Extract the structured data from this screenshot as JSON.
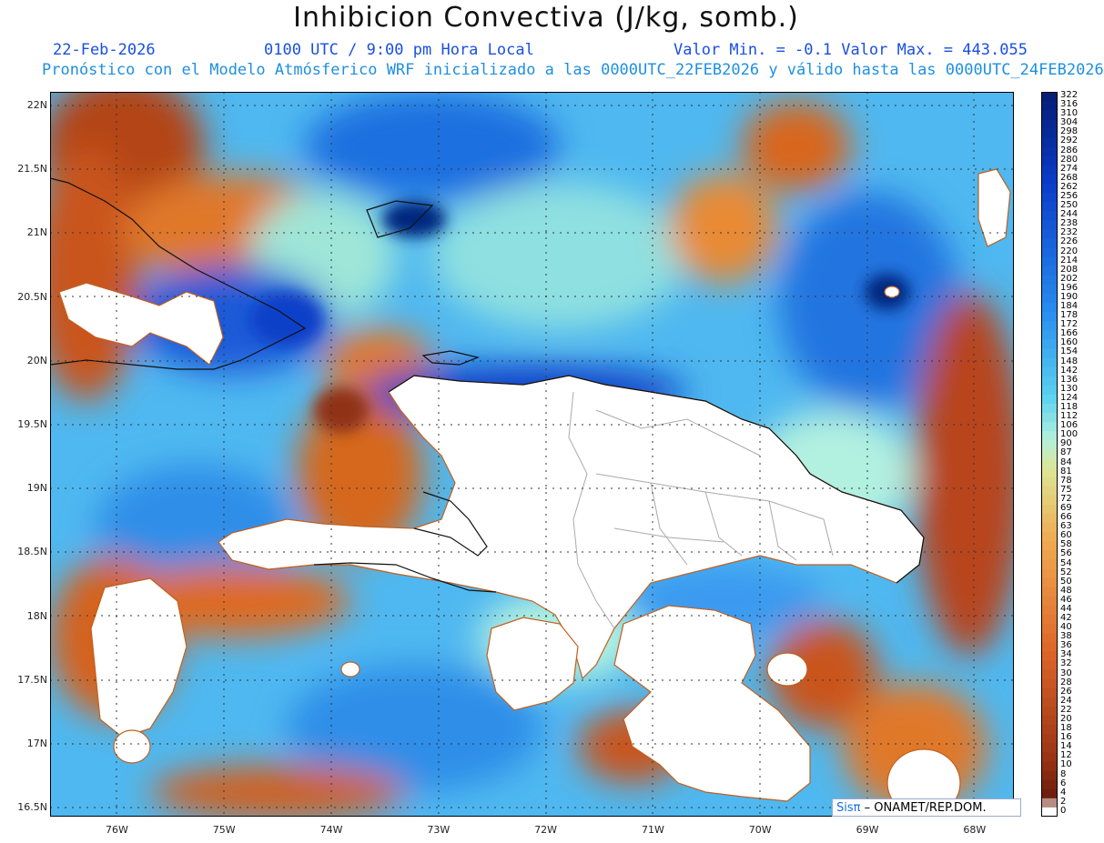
{
  "header": {
    "title": "Inhibicion Convectiva (J/kg, somb.)",
    "date": "22-Feb-2026",
    "time": "0100 UTC / 9:00 pm Hora Local",
    "minmax": "Valor Min. = -0.1  Valor Max. = 443.055",
    "forecast": "Pronóstico con el Modelo Atmósferico WRF inicializado a las 0000UTC_22FEB2026 y válido hasta las  0000UTC_24FEB2026"
  },
  "axes": {
    "lat_labels": [
      "22N",
      "21.5N",
      "21N",
      "20.5N",
      "20N",
      "19.5N",
      "19N",
      "18.5N",
      "18N",
      "17.5N",
      "17N",
      "16.5N"
    ],
    "lon_labels": [
      "76W",
      "75W",
      "74W",
      "73W",
      "72W",
      "71W",
      "70W",
      "69W",
      "68W"
    ]
  },
  "colorbar": {
    "labels": [
      "322",
      "316",
      "310",
      "304",
      "298",
      "292",
      "286",
      "280",
      "274",
      "268",
      "262",
      "256",
      "250",
      "244",
      "238",
      "232",
      "226",
      "220",
      "214",
      "208",
      "202",
      "196",
      "190",
      "184",
      "178",
      "172",
      "166",
      "160",
      "154",
      "148",
      "142",
      "136",
      "130",
      "124",
      "118",
      "112",
      "106",
      "100",
      "90",
      "87",
      "84",
      "81",
      "78",
      "75",
      "72",
      "69",
      "66",
      "63",
      "60",
      "58",
      "56",
      "54",
      "52",
      "50",
      "48",
      "46",
      "44",
      "42",
      "40",
      "38",
      "36",
      "34",
      "32",
      "30",
      "28",
      "26",
      "24",
      "22",
      "20",
      "18",
      "16",
      "14",
      "12",
      "10",
      "8",
      "6",
      "4",
      "2",
      "0"
    ]
  },
  "credit": {
    "logo": "Sisπ",
    "text": "– ONAMET/REP.DOM."
  },
  "colors": {
    "header_blue": "#1a4fe0",
    "header_lightblue": "#1f8fe0"
  }
}
